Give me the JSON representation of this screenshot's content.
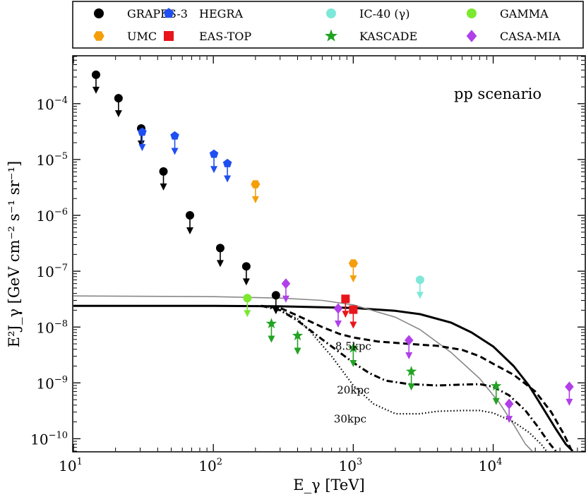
{
  "chart_data": {
    "type": "scatter",
    "xscale": "log",
    "yscale": "log",
    "xlim": [
      10,
      45000
    ],
    "ylim": [
      6e-11,
      0.0007
    ],
    "xlabel": "E_γ [TeV]",
    "ylabel": "E²J_γ [GeV cm⁻² s⁻¹ sr⁻¹]",
    "annotation": "pp scenario",
    "x_ticks": [
      {
        "value": 10,
        "base": "10",
        "exp": "1"
      },
      {
        "value": 100,
        "base": "10",
        "exp": "2"
      },
      {
        "value": 1000,
        "base": "10",
        "exp": "3"
      },
      {
        "value": 10000,
        "base": "10",
        "exp": "4"
      }
    ],
    "y_ticks": [
      {
        "value": 1e-10,
        "base": "10",
        "exp": "−10"
      },
      {
        "value": 1e-09,
        "base": "10",
        "exp": "−9"
      },
      {
        "value": 1e-08,
        "base": "10",
        "exp": "−8"
      },
      {
        "value": 1e-07,
        "base": "10",
        "exp": "−7"
      },
      {
        "value": 1e-06,
        "base": "10",
        "exp": "−6"
      },
      {
        "value": 1e-05,
        "base": "10",
        "exp": "−5"
      },
      {
        "value": 0.0001,
        "base": "10",
        "exp": "−4"
      }
    ],
    "series": [
      {
        "name": "GRAPES-3",
        "color": "#000000",
        "marker": "circle",
        "points": [
          [
            14.5,
            0.00033
          ],
          [
            21,
            0.000125
          ],
          [
            30.5,
            3.6e-05
          ],
          [
            44,
            6.1e-06
          ],
          [
            68,
            1e-06
          ],
          [
            112,
            2.6e-07
          ],
          [
            172,
            1.22e-07
          ],
          [
            280,
            3.7e-08
          ]
        ]
      },
      {
        "name": "UMC",
        "color": "#f59e0b",
        "marker": "hexagon",
        "points": [
          [
            200,
            3.6e-06
          ],
          [
            1000,
            1.38e-07
          ]
        ]
      },
      {
        "name": "HEGRA",
        "color": "#1f4ff0",
        "marker": "pentagon",
        "points": [
          [
            31,
            3.1e-05
          ],
          [
            53,
            2.65e-05
          ],
          [
            101,
            1.25e-05
          ],
          [
            126,
            8.5e-06
          ]
        ]
      },
      {
        "name": "EAS-TOP",
        "color": "#e8151b",
        "marker": "square",
        "points": [
          [
            880,
            3.2e-08
          ],
          [
            1000,
            2.05e-08
          ]
        ]
      },
      {
        "name": "IC-40 (γ)",
        "color": "#7ee8d8",
        "marker": "circle",
        "points": [
          [
            3000,
            7e-08
          ]
        ]
      },
      {
        "name": "KASCADE",
        "color": "#23a323",
        "marker": "star",
        "points": [
          [
            260,
            1.15e-08
          ],
          [
            400,
            7e-09
          ],
          [
            1000,
            4.2e-09
          ],
          [
            2600,
            1.6e-09
          ],
          [
            10500,
            8.8e-10
          ]
        ]
      },
      {
        "name": "GAMMA",
        "color": "#7ce830",
        "marker": "circle",
        "points": [
          [
            175,
            3.3e-08
          ]
        ]
      },
      {
        "name": "CASA-MIA",
        "color": "#b040e8",
        "marker": "diamond",
        "points": [
          [
            330,
            6e-08
          ],
          [
            780,
            2.15e-08
          ],
          [
            2500,
            5.8e-09
          ],
          [
            13000,
            4.2e-10
          ],
          [
            35000,
            8.5e-10
          ]
        ]
      }
    ],
    "curves": [
      {
        "name": "total",
        "color": "#000000",
        "style": "solid-thick",
        "points": [
          [
            10,
            2.4e-08
          ],
          [
            100,
            2.4e-08
          ],
          [
            300,
            2.35e-08
          ],
          [
            1000,
            2.2e-08
          ],
          [
            2000,
            1.95e-08
          ],
          [
            3000,
            1.7e-08
          ],
          [
            5000,
            1.2e-08
          ],
          [
            7000,
            8e-09
          ],
          [
            10000,
            4.5e-09
          ],
          [
            14000,
            2e-09
          ],
          [
            18000,
            9e-10
          ],
          [
            22000,
            4e-10
          ],
          [
            28000,
            1.5e-10
          ],
          [
            33000,
            8e-11
          ],
          [
            37000,
            6e-11
          ]
        ]
      },
      {
        "name": "thin",
        "color": "#888888",
        "style": "solid-thin",
        "points": [
          [
            10,
            3.6e-08
          ],
          [
            100,
            3.5e-08
          ],
          [
            300,
            3.3e-08
          ],
          [
            600,
            3e-08
          ],
          [
            1000,
            2.5e-08
          ],
          [
            2000,
            1.5e-08
          ],
          [
            3000,
            9e-09
          ],
          [
            5000,
            3.5e-09
          ],
          [
            8000,
            1.2e-09
          ],
          [
            11000,
            4.5e-10
          ],
          [
            14000,
            1.8e-10
          ],
          [
            17000,
            8e-11
          ],
          [
            19000,
            6e-11
          ]
        ]
      },
      {
        "name": "8.5kpc",
        "label": "8.5kpc",
        "color": "#000000",
        "style": "dashed",
        "points": [
          [
            220,
            2.4e-08
          ],
          [
            300,
            2.2e-08
          ],
          [
            400,
            1.6e-08
          ],
          [
            600,
            1e-08
          ],
          [
            800,
            7.5e-09
          ],
          [
            1000,
            6.5e-09
          ],
          [
            1500,
            5.5e-09
          ],
          [
            2500,
            5e-09
          ],
          [
            4000,
            4.6e-09
          ],
          [
            6000,
            3.9e-09
          ],
          [
            8000,
            3e-09
          ],
          [
            10000,
            2.2e-09
          ],
          [
            14000,
            1.4e-09
          ],
          [
            20000,
            7e-10
          ],
          [
            26000,
            3e-10
          ],
          [
            32000,
            1.2e-10
          ],
          [
            36000,
            6.5e-11
          ]
        ]
      },
      {
        "name": "20kpc",
        "label": "20kpc",
        "color": "#000000",
        "style": "dashdot",
        "points": [
          [
            220,
            2.4e-08
          ],
          [
            300,
            2e-08
          ],
          [
            400,
            1.3e-08
          ],
          [
            600,
            6e-09
          ],
          [
            800,
            3.5e-09
          ],
          [
            1000,
            2.3e-09
          ],
          [
            1300,
            1.5e-09
          ],
          [
            1700,
            1.1e-09
          ],
          [
            2500,
            9.5e-10
          ],
          [
            4000,
            9e-10
          ],
          [
            6000,
            9.3e-10
          ],
          [
            8000,
            9.5e-10
          ],
          [
            10000,
            8.5e-10
          ],
          [
            13000,
            6e-10
          ],
          [
            17000,
            3.2e-10
          ],
          [
            21000,
            1.6e-10
          ],
          [
            25000,
            8.5e-11
          ],
          [
            28000,
            6e-11
          ]
        ]
      },
      {
        "name": "30kpc",
        "label": "30kpc",
        "color": "#000000",
        "style": "dotted",
        "points": [
          [
            200,
            2.4e-08
          ],
          [
            280,
            2.2e-08
          ],
          [
            400,
            1.4e-08
          ],
          [
            500,
            8e-09
          ],
          [
            700,
            3e-09
          ],
          [
            1000,
            9e-10
          ],
          [
            1400,
            4.2e-10
          ],
          [
            2000,
            2.8e-10
          ],
          [
            3000,
            2.8e-10
          ],
          [
            4000,
            3.1e-10
          ],
          [
            6000,
            3.2e-10
          ],
          [
            8000,
            3.2e-10
          ],
          [
            10000,
            2.9e-10
          ],
          [
            14000,
            2e-10
          ],
          [
            18000,
            1.3e-10
          ],
          [
            22000,
            8e-11
          ],
          [
            24000,
            6e-11
          ]
        ]
      }
    ],
    "curve_label_positions": [
      {
        "name": "8.5kpc",
        "x": 1000,
        "y": 3.9e-09
      },
      {
        "name": "20kpc",
        "x": 1000,
        "y": 6.4e-10
      },
      {
        "name": "30kpc",
        "x": 950,
        "y": 1.95e-10
      }
    ],
    "legend": {
      "placement": "top",
      "columns": 4,
      "entries": [
        "GRAPES-3",
        "HEGRA",
        "IC-40 (γ)",
        "GAMMA",
        "UMC",
        "EAS-TOP",
        "KASCADE",
        "CASA-MIA"
      ]
    }
  }
}
